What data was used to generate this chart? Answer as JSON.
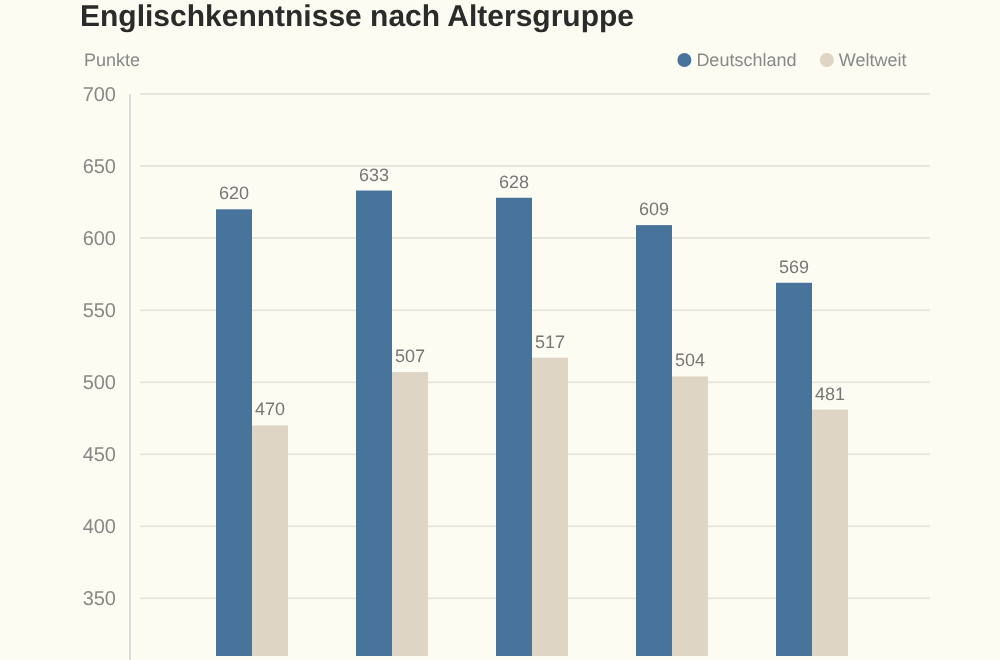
{
  "chart_data": {
    "type": "bar",
    "title": "Englischkenntnisse nach Altersgruppe",
    "ylabel": "Punkte",
    "categories": [
      null,
      null,
      null,
      null,
      null
    ],
    "series": [
      {
        "name": "Deutschland",
        "color": "#48739a",
        "values": [
          620,
          633,
          628,
          609,
          569
        ]
      },
      {
        "name": "Weltweit",
        "color": "#ded5c4",
        "values": [
          470,
          507,
          517,
          504,
          481
        ]
      }
    ],
    "ylim": [
      310,
      700
    ],
    "yticks": [
      350,
      400,
      450,
      500,
      550,
      600,
      650,
      700
    ],
    "grid": "y",
    "legend": "top right",
    "data_labels": true
  }
}
